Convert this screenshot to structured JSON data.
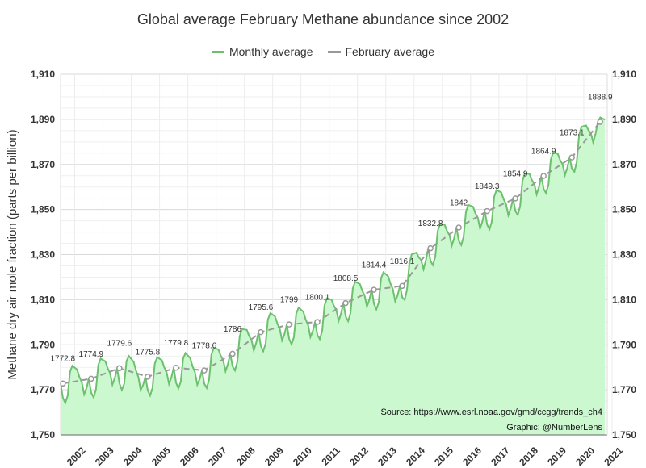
{
  "chart_data": {
    "type": "line",
    "title": "Global average February Methane abundance since 2002",
    "ylabel": "Methane dry air mole fraction (parts per billion)",
    "xlabel": "",
    "ylim": [
      1750,
      1910
    ],
    "yticks": [
      1750,
      1770,
      1790,
      1810,
      1830,
      1850,
      1870,
      1890,
      1910
    ],
    "ytick_labels": [
      "1,750",
      "1,770",
      "1,790",
      "1,810",
      "1,830",
      "1,850",
      "1,870",
      "1,890",
      "1,910"
    ],
    "x_range": [
      2002.0,
      2021.33
    ],
    "categories": [
      "2002",
      "2003",
      "2004",
      "2005",
      "2006",
      "2007",
      "2008",
      "2009",
      "2010",
      "2011",
      "2012",
      "2013",
      "2014",
      "2015",
      "2016",
      "2017",
      "2018",
      "2019",
      "2020",
      "2021"
    ],
    "grid": true,
    "legend_position": "top-center",
    "series": [
      {
        "name": "Monthly average",
        "color": "#6cc06e",
        "fill": "#ccf8d0",
        "cycle_offsets": [
          0.0,
          -6.5,
          -9.0,
          -6.0,
          4.5,
          7.0,
          6.0,
          5.0,
          1.5,
          -1.0,
          -6.5,
          -4.0
        ],
        "february_values": [
          1772.8,
          1774.9,
          1779.6,
          1775.8,
          1779.8,
          1778.6,
          1786.0,
          1795.6,
          1799.0,
          1800.1,
          1808.5,
          1814.4,
          1816.1,
          1832.8,
          1842.0,
          1849.3,
          1854.9,
          1864.9,
          1873.1,
          1888.9
        ],
        "last_february_extra_months": [
          1.9,
          1.4,
          1.0
        ]
      },
      {
        "name": "February average",
        "color": "#999999",
        "dashed": true,
        "x": [
          2002.08,
          2003.08,
          2004.08,
          2005.08,
          2006.08,
          2007.08,
          2008.08,
          2009.08,
          2010.08,
          2011.08,
          2012.08,
          2013.08,
          2014.08,
          2015.08,
          2016.08,
          2017.08,
          2018.08,
          2019.08,
          2020.08,
          2021.08
        ],
        "values": [
          1772.8,
          1774.9,
          1779.6,
          1775.8,
          1779.8,
          1778.6,
          1786.0,
          1795.6,
          1799.0,
          1800.1,
          1808.5,
          1814.4,
          1816.1,
          1832.8,
          1842.0,
          1849.3,
          1854.9,
          1864.9,
          1873.1,
          1888.9
        ]
      }
    ],
    "data_labels": [
      "1772.8",
      "1774.9",
      "1779.6",
      "1775.8",
      "1779.8",
      "1778.6",
      "1786",
      "1795.6",
      "1799",
      "1800.1",
      "1808.5",
      "1814.4",
      "1816.1",
      "1832.8",
      "1842",
      "1849.3",
      "1854.9",
      "1864.9",
      "1873.1",
      "1888.9"
    ],
    "annotations": [
      "Source: https://www.esrl.noaa.gov/gmd/ccgg/trends_ch4",
      "Graphic: @NumberLens"
    ]
  }
}
